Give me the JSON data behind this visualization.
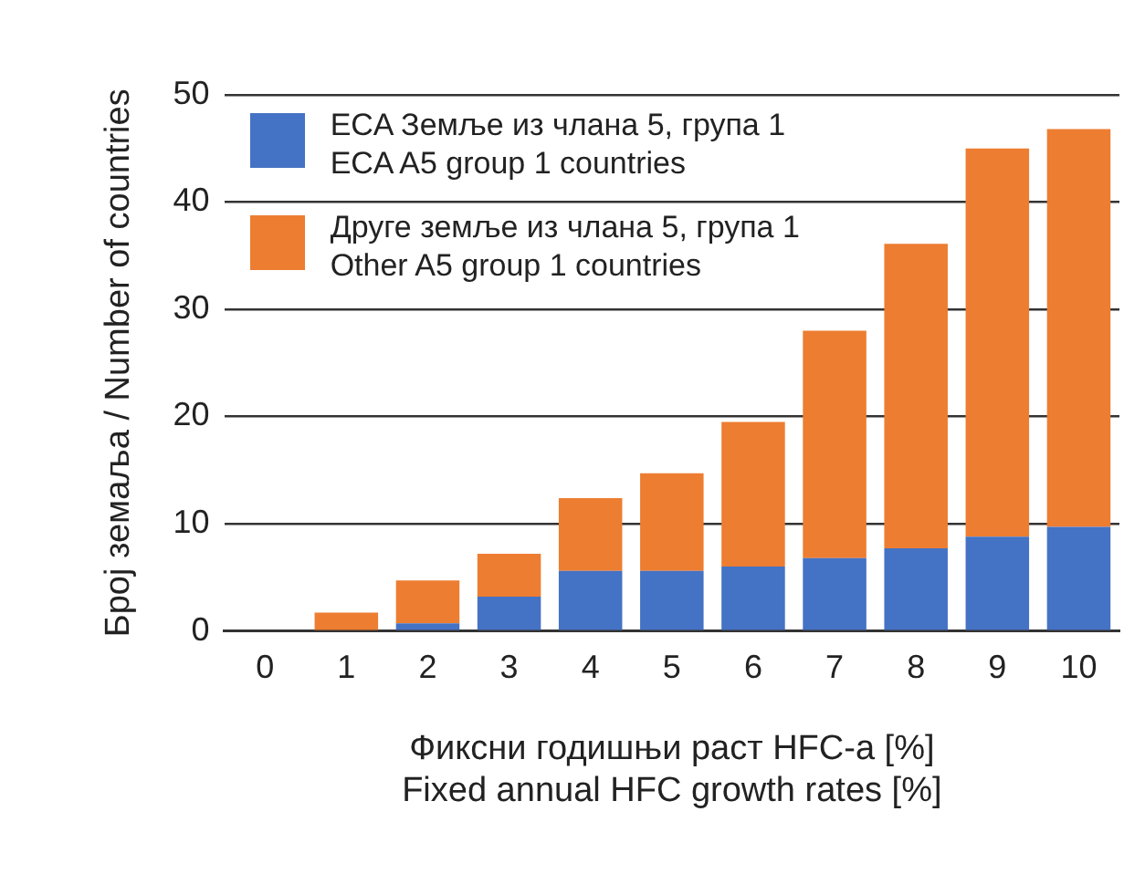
{
  "chart_data": {
    "type": "bar",
    "stacked": true,
    "xlabel": "Фиксни годишњи раст HFC-а [%]\nFixed annual HFC growth rates [%]",
    "ylabel": "Број земаља / Number of countries",
    "categories": [
      "0",
      "1",
      "2",
      "3",
      "4",
      "5",
      "6",
      "7",
      "8",
      "9",
      "10"
    ],
    "series": [
      {
        "name": "ECA Земље из члана 5, група 1\nECA A5 group 1 countries",
        "color": "#4472c4",
        "values": [
          null,
          0,
          0.7,
          3.2,
          5.6,
          5.6,
          6.0,
          6.8,
          7.7,
          8.8,
          9.7
        ]
      },
      {
        "name": "Друге земље из члана 5, група 1\nOther A5 group 1 countries",
        "color": "#ed7d31",
        "values": [
          null,
          1.7,
          4.0,
          4.0,
          6.8,
          9.1,
          13.5,
          21.2,
          28.4,
          36.2,
          37.1
        ]
      }
    ],
    "ylim": [
      0,
      50
    ],
    "yticks": [
      0,
      10,
      20,
      30,
      40,
      50
    ],
    "grid": "y",
    "legend": "top left"
  }
}
